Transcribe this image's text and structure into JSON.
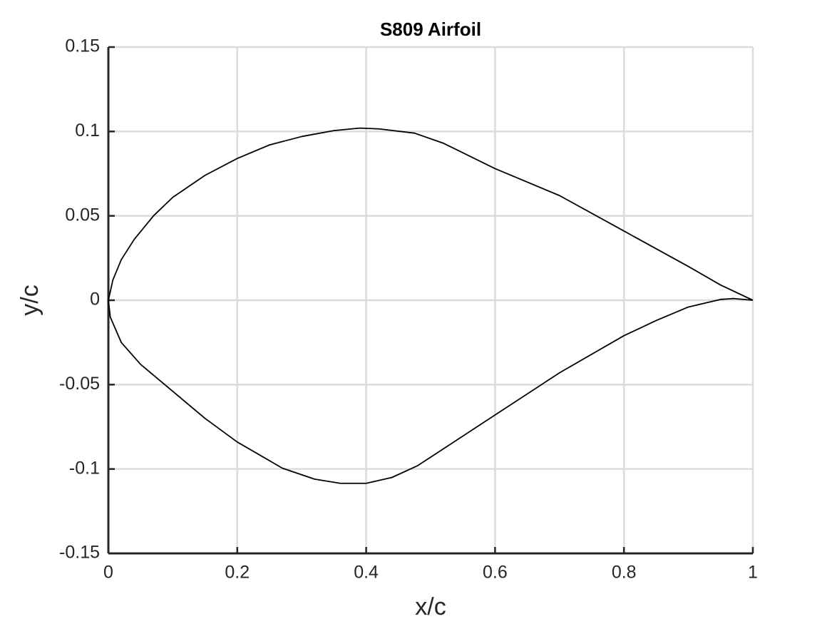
{
  "chart_data": {
    "type": "line",
    "title": "S809 Airfoil",
    "xlabel": "x/c",
    "ylabel": "y/c",
    "series": [
      {
        "color": "#000000",
        "x": [
          1,
          0.95,
          0.9,
          0.8,
          0.7,
          0.6,
          0.52,
          0.475,
          0.42,
          0.39,
          0.35,
          0.3,
          0.25,
          0.2,
          0.15,
          0.1,
          0.07,
          0.04,
          0.02,
          0.007,
          0,
          0.003,
          0.02,
          0.05,
          0.1,
          0.15,
          0.2,
          0.27,
          0.32,
          0.36,
          0.4,
          0.44,
          0.48,
          0.52,
          0.6,
          0.7,
          0.8,
          0.85,
          0.9,
          0.95,
          0.97,
          1
        ],
        "values": [
          0,
          0.009,
          0.02,
          0.041,
          0.062,
          0.078,
          0.093,
          0.099,
          0.1015,
          0.102,
          0.1005,
          0.097,
          0.092,
          0.084,
          0.074,
          0.061,
          0.05,
          0.036,
          0.024,
          0.012,
          0,
          -0.01,
          -0.025,
          -0.038,
          -0.054,
          -0.07,
          -0.084,
          -0.0995,
          -0.106,
          -0.1085,
          -0.1085,
          -0.105,
          -0.098,
          -0.088,
          -0.068,
          -0.043,
          -0.021,
          -0.012,
          -0.004,
          0.0005,
          0.001,
          0
        ]
      }
    ],
    "xlim": [
      0,
      1
    ],
    "xticks": [
      0,
      0.2,
      0.4,
      0.6,
      0.8,
      1
    ],
    "ylim": [
      -0.15,
      0.15
    ],
    "yticks": [
      -0.15,
      -0.1,
      -0.05,
      0,
      0.05,
      0.1,
      0.15
    ],
    "grid": true
  }
}
